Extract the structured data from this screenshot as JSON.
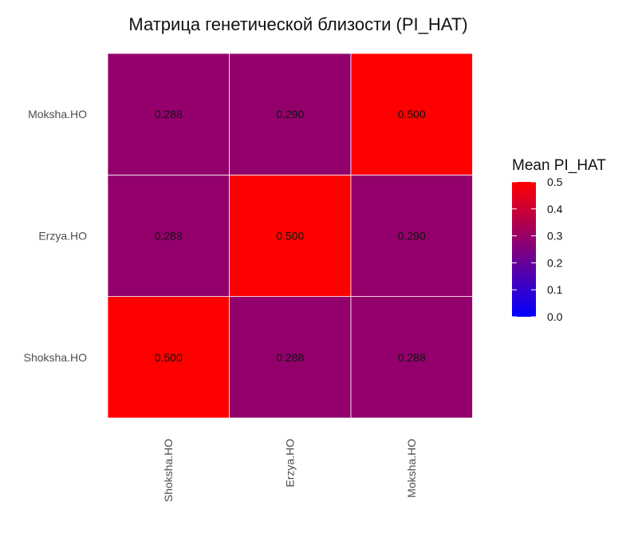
{
  "chart_data": {
    "type": "heatmap",
    "title": "Матрица генетической близости (PI_HAT)",
    "x_categories": [
      "Shoksha.HO",
      "Erzya.HO",
      "Moksha.HO"
    ],
    "y_categories": [
      "Shoksha.HO",
      "Erzya.HO",
      "Moksha.HO"
    ],
    "values": [
      [
        0.5,
        0.288,
        0.288
      ],
      [
        0.288,
        0.5,
        0.29
      ],
      [
        0.288,
        0.29,
        0.5
      ]
    ],
    "value_labels": [
      [
        "0.500",
        "0.288",
        "0.288"
      ],
      [
        "0.288",
        "0.500",
        "0.290"
      ],
      [
        "0.288",
        "0.290",
        "0.500"
      ]
    ],
    "legend": {
      "title": "Mean PI_HAT",
      "ticks": [
        "0.0",
        "0.1",
        "0.2",
        "0.3",
        "0.4",
        "0.5"
      ],
      "tick_values": [
        0.0,
        0.1,
        0.2,
        0.3,
        0.4,
        0.5
      ],
      "range": [
        0.0,
        0.5
      ],
      "placement": "right"
    },
    "color_low": "#0000ff",
    "color_high": "#ff0000",
    "grid": false
  }
}
